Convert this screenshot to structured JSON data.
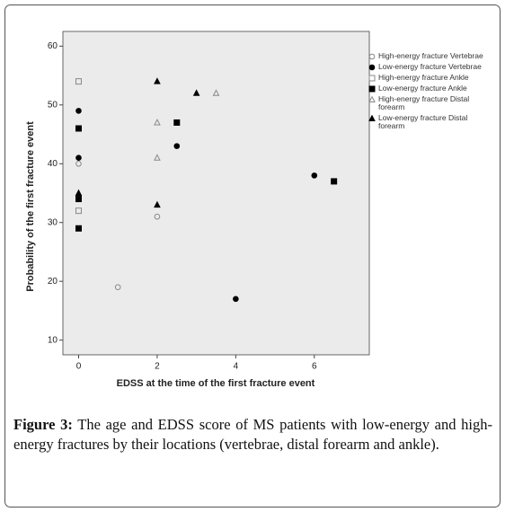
{
  "chart_data": {
    "type": "scatter",
    "x_label": "EDSS at the time of the first fracture event",
    "y_label": "Probability of the first fracture event",
    "xlim": [
      -0.4,
      7.4
    ],
    "xticks": [
      0,
      2,
      4,
      6
    ],
    "ylim": [
      7.5,
      62.5
    ],
    "yticks": [
      10,
      20,
      30,
      40,
      50,
      60
    ],
    "background": "#ebebeb",
    "series": [
      {
        "name": "High-energy fracture Vertebrae",
        "color": "#888888",
        "marker": "circle",
        "filled": false,
        "x": [
          0,
          1,
          2
        ],
        "values": [
          40,
          19,
          31
        ]
      },
      {
        "name": "Low-energy fracture Vertebrae",
        "color": "#000000",
        "marker": "circle",
        "filled": true,
        "x": [
          0,
          0,
          2.5,
          4,
          6
        ],
        "values": [
          49,
          41,
          43,
          17,
          38
        ]
      },
      {
        "name": "High-energy fracture Ankle",
        "color": "#888888",
        "marker": "square",
        "filled": false,
        "x": [
          0,
          0
        ],
        "values": [
          54,
          32
        ]
      },
      {
        "name": "Low-energy fracture Ankle",
        "color": "#000000",
        "marker": "square",
        "filled": true,
        "x": [
          0,
          0,
          0,
          2.5,
          6.5
        ],
        "values": [
          46,
          34,
          29,
          47,
          37
        ]
      },
      {
        "name": "High-energy fracture Distal forearm",
        "color": "#888888",
        "marker": "triangle",
        "filled": false,
        "x": [
          2,
          2,
          3.5
        ],
        "values": [
          47,
          41,
          52
        ]
      },
      {
        "name": "Low-energy fracture Distal forearm",
        "color": "#000000",
        "marker": "triangle",
        "filled": true,
        "x": [
          0,
          2,
          2,
          3
        ],
        "values": [
          35,
          54,
          33,
          52
        ]
      }
    ]
  },
  "caption": {
    "label": "Figure 3:",
    "text": "The age and EDSS score of MS patients with low-energy and high-energy fractures by their locations (vertebrae, distal forearm and ankle)."
  }
}
